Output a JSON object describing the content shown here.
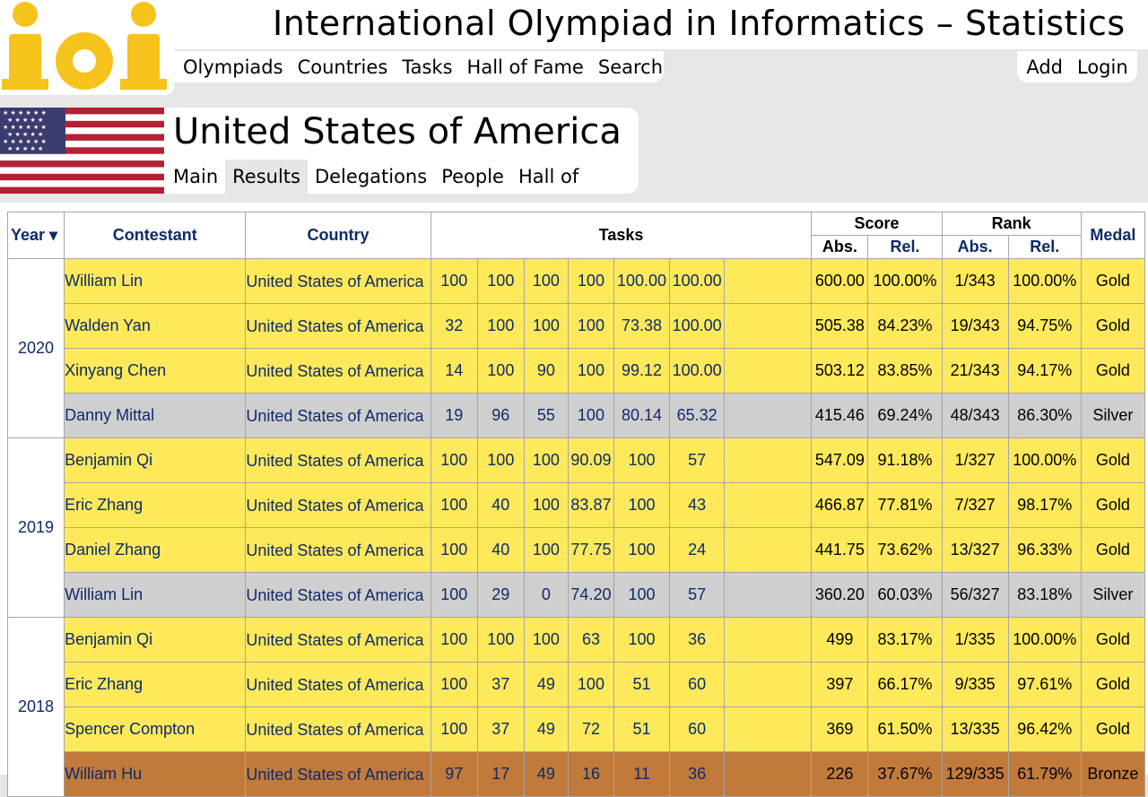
{
  "header": {
    "site_title": "International Olympiad in Informatics – Statistics",
    "logo_text": "IOI",
    "nav": [
      "Olympiads",
      "Countries",
      "Tasks",
      "Hall of Fame",
      "Search"
    ],
    "user_nav": [
      "Add",
      "Login"
    ]
  },
  "country": {
    "name": "United States of America",
    "tabs": [
      "Main",
      "Results",
      "Delegations",
      "People",
      "Hall of Fame"
    ],
    "active_tab": "Results"
  },
  "table": {
    "headers": {
      "year": "Year ▾",
      "contestant": "Contestant",
      "country": "Country",
      "tasks": "Tasks",
      "score": "Score",
      "rank": "Rank",
      "abs": "Abs.",
      "rel": "Rel.",
      "medal": "Medal"
    },
    "groups": [
      {
        "year": "2020",
        "rows": [
          {
            "medal_class": "gold",
            "name": "William Lin",
            "country": "United States of America",
            "tasks": [
              "100",
              "100",
              "100",
              "100",
              "100.00",
              "100.00",
              ""
            ],
            "score_abs": "600.00",
            "score_rel": "100.00%",
            "rank_abs": "1/343",
            "rank_rel": "100.00%",
            "medal": "Gold"
          },
          {
            "medal_class": "gold",
            "name": "Walden Yan",
            "country": "United States of America",
            "tasks": [
              "32",
              "100",
              "100",
              "100",
              "73.38",
              "100.00",
              ""
            ],
            "score_abs": "505.38",
            "score_rel": "84.23%",
            "rank_abs": "19/343",
            "rank_rel": "94.75%",
            "medal": "Gold"
          },
          {
            "medal_class": "gold",
            "name": "Xinyang Chen",
            "country": "United States of America",
            "tasks": [
              "14",
              "100",
              "90",
              "100",
              "99.12",
              "100.00",
              ""
            ],
            "score_abs": "503.12",
            "score_rel": "83.85%",
            "rank_abs": "21/343",
            "rank_rel": "94.17%",
            "medal": "Gold"
          },
          {
            "medal_class": "silver",
            "name": "Danny Mittal",
            "country": "United States of America",
            "tasks": [
              "19",
              "96",
              "55",
              "100",
              "80.14",
              "65.32",
              ""
            ],
            "score_abs": "415.46",
            "score_rel": "69.24%",
            "rank_abs": "48/343",
            "rank_rel": "86.30%",
            "medal": "Silver"
          }
        ]
      },
      {
        "year": "2019",
        "rows": [
          {
            "medal_class": "gold",
            "name": "Benjamin Qi",
            "country": "United States of America",
            "tasks": [
              "100",
              "100",
              "100",
              "90.09",
              "100",
              "57",
              ""
            ],
            "score_abs": "547.09",
            "score_rel": "91.18%",
            "rank_abs": "1/327",
            "rank_rel": "100.00%",
            "medal": "Gold"
          },
          {
            "medal_class": "gold",
            "name": "Eric Zhang",
            "country": "United States of America",
            "tasks": [
              "100",
              "40",
              "100",
              "83.87",
              "100",
              "43",
              ""
            ],
            "score_abs": "466.87",
            "score_rel": "77.81%",
            "rank_abs": "7/327",
            "rank_rel": "98.17%",
            "medal": "Gold"
          },
          {
            "medal_class": "gold",
            "name": "Daniel Zhang",
            "country": "United States of America",
            "tasks": [
              "100",
              "40",
              "100",
              "77.75",
              "100",
              "24",
              ""
            ],
            "score_abs": "441.75",
            "score_rel": "73.62%",
            "rank_abs": "13/327",
            "rank_rel": "96.33%",
            "medal": "Gold"
          },
          {
            "medal_class": "silver",
            "name": "William Lin",
            "country": "United States of America",
            "tasks": [
              "100",
              "29",
              "0",
              "74.20",
              "100",
              "57",
              ""
            ],
            "score_abs": "360.20",
            "score_rel": "60.03%",
            "rank_abs": "56/327",
            "rank_rel": "83.18%",
            "medal": "Silver"
          }
        ]
      },
      {
        "year": "2018",
        "rows": [
          {
            "medal_class": "gold",
            "name": "Benjamin Qi",
            "country": "United States of America",
            "tasks": [
              "100",
              "100",
              "100",
              "63",
              "100",
              "36",
              ""
            ],
            "score_abs": "499",
            "score_rel": "83.17%",
            "rank_abs": "1/335",
            "rank_rel": "100.00%",
            "medal": "Gold"
          },
          {
            "medal_class": "gold",
            "name": "Eric Zhang",
            "country": "United States of America",
            "tasks": [
              "100",
              "37",
              "49",
              "100",
              "51",
              "60",
              ""
            ],
            "score_abs": "397",
            "score_rel": "66.17%",
            "rank_abs": "9/335",
            "rank_rel": "97.61%",
            "medal": "Gold"
          },
          {
            "medal_class": "gold",
            "name": "Spencer Compton",
            "country": "United States of America",
            "tasks": [
              "100",
              "37",
              "49",
              "72",
              "51",
              "60",
              ""
            ],
            "score_abs": "369",
            "score_rel": "61.50%",
            "rank_abs": "13/335",
            "rank_rel": "96.42%",
            "medal": "Gold"
          },
          {
            "medal_class": "bronze",
            "name": "William Hu",
            "country": "United States of America",
            "tasks": [
              "97",
              "17",
              "49",
              "16",
              "11",
              "36",
              ""
            ],
            "score_abs": "226",
            "score_rel": "37.67%",
            "rank_abs": "129/335",
            "rank_rel": "61.79%",
            "medal": "Bronze"
          }
        ]
      }
    ]
  },
  "colors": {
    "gold_row": "#fde95a",
    "silver_row": "#cfcfcf",
    "bronze_row": "#c17a3a",
    "link": "#0d2a6b",
    "page_bg": "#e6e6e6"
  }
}
